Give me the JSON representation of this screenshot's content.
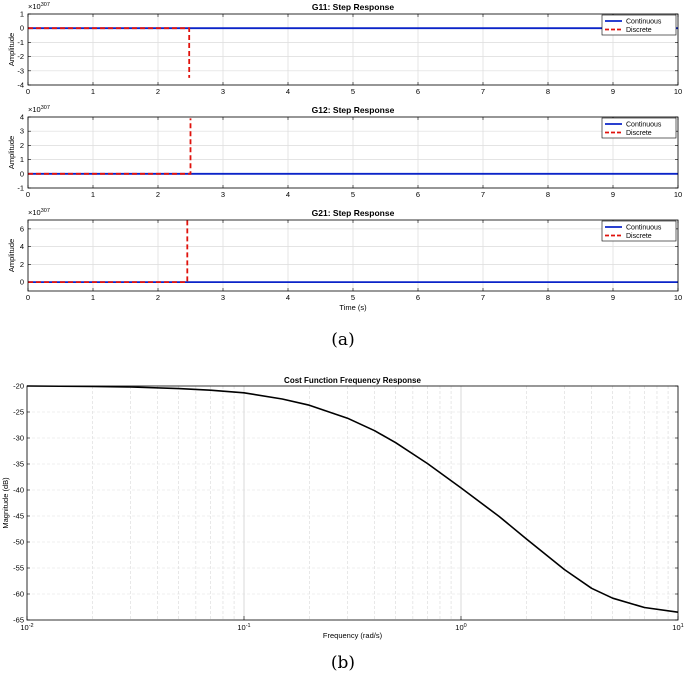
{
  "captions": {
    "a": "(a)",
    "b": "(b)"
  },
  "colors": {
    "continuous": "#0b24c8",
    "discrete": "#e0120c",
    "curve": "#000000",
    "grid": "#dcdcdc"
  },
  "chart_data": [
    {
      "id": "g11",
      "type": "line",
      "title": "G11: Step Response",
      "xlabel": "",
      "ylabel": "Amplitude",
      "exponent_label": "×10",
      "exponent_sup": "307",
      "xlim": [
        0,
        10
      ],
      "ylim": [
        -4,
        1
      ],
      "xticks": [
        0,
        1,
        2,
        3,
        4,
        5,
        6,
        7,
        8,
        9,
        10
      ],
      "yticks": [
        -4,
        -3,
        -2,
        -1,
        0,
        1
      ],
      "legend": {
        "position": "top-right",
        "entries": [
          "Continuous",
          "Discrete"
        ]
      },
      "grid": true,
      "series": [
        {
          "name": "Continuous",
          "style": "solid",
          "x": [
            0,
            10
          ],
          "y": [
            0,
            0
          ]
        },
        {
          "name": "Discrete",
          "style": "dashed",
          "x": [
            0,
            2.48,
            2.48
          ],
          "y": [
            0,
            0,
            -3.5
          ]
        }
      ]
    },
    {
      "id": "g12",
      "type": "line",
      "title": "G12: Step Response",
      "xlabel": "",
      "ylabel": "Amplitude",
      "exponent_label": "×10",
      "exponent_sup": "307",
      "xlim": [
        0,
        10
      ],
      "ylim": [
        -1,
        4
      ],
      "xticks": [
        0,
        1,
        2,
        3,
        4,
        5,
        6,
        7,
        8,
        9,
        10
      ],
      "yticks": [
        -1,
        0,
        1,
        2,
        3,
        4
      ],
      "legend": {
        "position": "top-right",
        "entries": [
          "Continuous",
          "Discrete"
        ]
      },
      "grid": true,
      "series": [
        {
          "name": "Continuous",
          "style": "solid",
          "x": [
            0,
            10
          ],
          "y": [
            0,
            0
          ]
        },
        {
          "name": "Discrete",
          "style": "dashed",
          "x": [
            0,
            2.5,
            2.5
          ],
          "y": [
            0,
            0,
            3.9
          ]
        }
      ]
    },
    {
      "id": "g21",
      "type": "line",
      "title": "G21: Step Response",
      "xlabel": "Time (s)",
      "ylabel": "Amplitude",
      "exponent_label": "×10",
      "exponent_sup": "307",
      "xlim": [
        0,
        10
      ],
      "ylim": [
        -1,
        7
      ],
      "xticks": [
        0,
        1,
        2,
        3,
        4,
        5,
        6,
        7,
        8,
        9,
        10
      ],
      "yticks": [
        0,
        2,
        4,
        6
      ],
      "legend": {
        "position": "top-right",
        "entries": [
          "Continuous",
          "Discrete"
        ]
      },
      "grid": true,
      "series": [
        {
          "name": "Continuous",
          "style": "solid",
          "x": [
            0,
            10
          ],
          "y": [
            0,
            0
          ]
        },
        {
          "name": "Discrete",
          "style": "dashed",
          "x": [
            0,
            2.45,
            2.45
          ],
          "y": [
            0,
            0,
            7
          ]
        }
      ]
    },
    {
      "id": "cost",
      "type": "line",
      "scale": "semilogx",
      "title": "Cost Function Frequency Response",
      "xlabel": "Frequency (rad/s)",
      "ylabel": "Magnitude (dB)",
      "xlim": [
        0.01,
        10
      ],
      "ylim": [
        -65,
        -20
      ],
      "xticks": [
        0.01,
        0.1,
        1,
        10
      ],
      "xtick_labels": [
        {
          "base": "10",
          "sup": "-2"
        },
        {
          "base": "10",
          "sup": "-1"
        },
        {
          "base": "10",
          "sup": "0"
        },
        {
          "base": "10",
          "sup": "1"
        }
      ],
      "yticks": [
        -65,
        -60,
        -55,
        -50,
        -45,
        -40,
        -35,
        -30,
        -25,
        -20
      ],
      "grid": true,
      "series": [
        {
          "style": "solid",
          "x": [
            0.01,
            0.02,
            0.03,
            0.05,
            0.07,
            0.1,
            0.15,
            0.2,
            0.3,
            0.4,
            0.5,
            0.7,
            1.0,
            1.5,
            2.0,
            3.0,
            4.0,
            5.0,
            7.0,
            10.0
          ],
          "y": [
            -20.0,
            -20.1,
            -20.2,
            -20.5,
            -20.8,
            -21.3,
            -22.5,
            -23.7,
            -26.2,
            -28.6,
            -30.9,
            -34.9,
            -39.6,
            -45.1,
            -49.4,
            -55.3,
            -58.9,
            -60.8,
            -62.6,
            -63.5
          ]
        }
      ]
    }
  ]
}
